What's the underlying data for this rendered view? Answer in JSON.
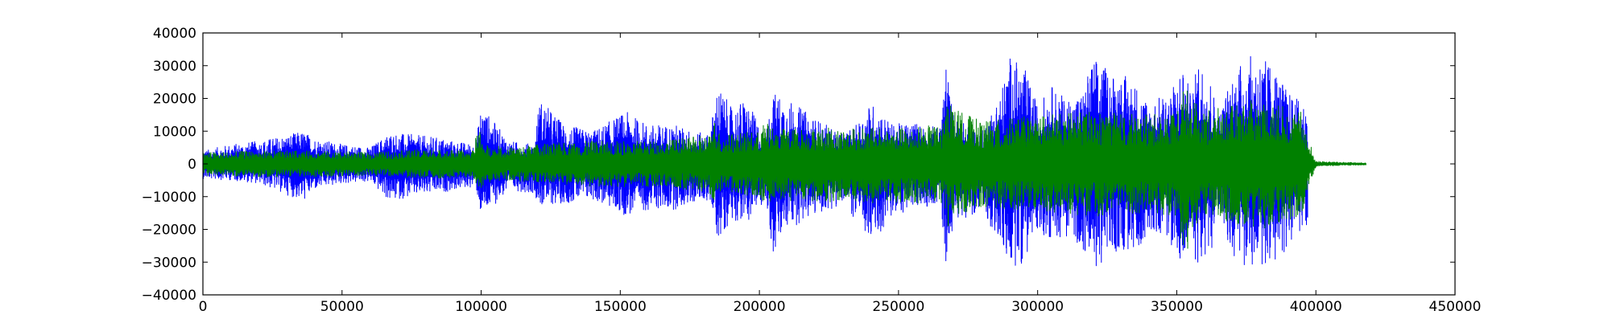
{
  "chart_data": {
    "type": "line",
    "title": "",
    "xlabel": "",
    "ylabel": "",
    "xlim": [
      0,
      450000
    ],
    "ylim": [
      -40000,
      40000
    ],
    "x_ticks": [
      0,
      50000,
      100000,
      150000,
      200000,
      250000,
      300000,
      350000,
      400000,
      450000
    ],
    "x_tick_labels": [
      "0",
      "50000",
      "100000",
      "150000",
      "200000",
      "250000",
      "300000",
      "350000",
      "400000",
      "450000"
    ],
    "y_ticks": [
      40000,
      30000,
      20000,
      10000,
      0,
      -10000,
      -20000,
      -30000,
      -40000
    ],
    "y_tick_labels": [
      "40000",
      "30000",
      "20000",
      "10000",
      "0",
      "−10000",
      "−20000",
      "−30000",
      "−40000"
    ],
    "grid": false,
    "legend": false,
    "series": [
      {
        "color": "#0000ff",
        "x_end": 397000,
        "envelope": {
          "x": [
            0,
            10000,
            20000,
            36000,
            40000,
            50000,
            60000,
            67000,
            75000,
            85000,
            90000,
            98000,
            100000,
            110000,
            119000,
            121000,
            130000,
            140000,
            152000,
            160000,
            170000,
            176000,
            182000,
            185000,
            190000,
            195000,
            200000,
            202000,
            205000,
            210000,
            220000,
            230000,
            235000,
            240000,
            248000,
            255000,
            260000,
            265000,
            267000,
            268000,
            270000,
            275000,
            280000,
            287000,
            290000,
            295000,
            300000,
            305000,
            310000,
            316000,
            320000,
            325000,
            330000,
            335000,
            340000,
            345000,
            350000,
            352000,
            355000,
            358000,
            362000,
            365000,
            370000,
            375000,
            380000,
            385000,
            390000,
            395000,
            397000
          ],
          "upper": [
            4000,
            6000,
            7000,
            10000,
            8000,
            6000,
            5000,
            9500,
            9000,
            8000,
            7000,
            6000,
            18000,
            7000,
            6000,
            20000,
            12000,
            10000,
            16000,
            12000,
            12000,
            10000,
            9000,
            24500,
            17000,
            20000,
            12000,
            8000,
            22000,
            20000,
            14000,
            9000,
            12000,
            19000,
            12000,
            13000,
            12000,
            11000,
            32500,
            25000,
            14000,
            12000,
            10000,
            23000,
            33000,
            30000,
            18000,
            24000,
            20000,
            22000,
            33000,
            29000,
            28000,
            25000,
            19000,
            21000,
            25000,
            32500,
            21000,
            33000,
            27000,
            15000,
            28000,
            33000,
            33000,
            30000,
            22000,
            19000,
            19000
          ],
          "lower": [
            -4500,
            -5000,
            -6000,
            -11500,
            -8000,
            -6000,
            -5500,
            -11500,
            -10000,
            -9000,
            -8000,
            -7000,
            -16500,
            -8000,
            -9000,
            -13000,
            -12000,
            -11000,
            -16000,
            -14000,
            -14000,
            -12000,
            -11000,
            -23500,
            -17000,
            -18000,
            -14000,
            -10000,
            -29000,
            -20000,
            -16000,
            -12000,
            -18000,
            -25000,
            -16000,
            -14000,
            -13000,
            -12000,
            -31500,
            -24000,
            -18000,
            -16000,
            -14000,
            -26000,
            -32500,
            -30000,
            -20000,
            -24000,
            -22000,
            -26000,
            -32500,
            -29000,
            -27000,
            -28000,
            -20000,
            -22000,
            -27000,
            -32500,
            -26000,
            -32500,
            -28000,
            -17000,
            -28000,
            -32500,
            -32500,
            -30000,
            -26000,
            -20000,
            -20000
          ]
        }
      },
      {
        "color": "#008000",
        "x_end": 418000,
        "envelope": {
          "x": [
            0,
            20000,
            40000,
            60000,
            80000,
            97000,
            99000,
            101000,
            110000,
            120000,
            140000,
            160000,
            175000,
            182000,
            184000,
            186000,
            200000,
            202000,
            205000,
            220000,
            250000,
            266000,
            268000,
            270000,
            280000,
            300000,
            320000,
            340000,
            350000,
            353000,
            355000,
            360000,
            380000,
            395000,
            397000,
            400000,
            418000
          ],
          "upper": [
            3500,
            4000,
            4000,
            3500,
            4500,
            4000,
            12000,
            6000,
            5000,
            6000,
            7000,
            7000,
            8000,
            9000,
            14000,
            9000,
            10000,
            13000,
            11000,
            11000,
            11000,
            12000,
            22000,
            17000,
            13000,
            15000,
            16000,
            15000,
            16000,
            25000,
            20000,
            16000,
            20000,
            16000,
            9000,
            800,
            300
          ],
          "lower": [
            -3500,
            -4000,
            -4000,
            -3500,
            -4500,
            -4000,
            -10000,
            -6000,
            -5000,
            -6000,
            -7000,
            -7000,
            -8000,
            -9000,
            -13000,
            -9000,
            -10000,
            -13000,
            -11000,
            -12000,
            -12000,
            -12000,
            -20000,
            -16000,
            -13000,
            -15000,
            -16000,
            -15000,
            -16000,
            -32000,
            -20000,
            -16000,
            -20000,
            -16000,
            -8000,
            -800,
            -300
          ]
        }
      }
    ]
  }
}
